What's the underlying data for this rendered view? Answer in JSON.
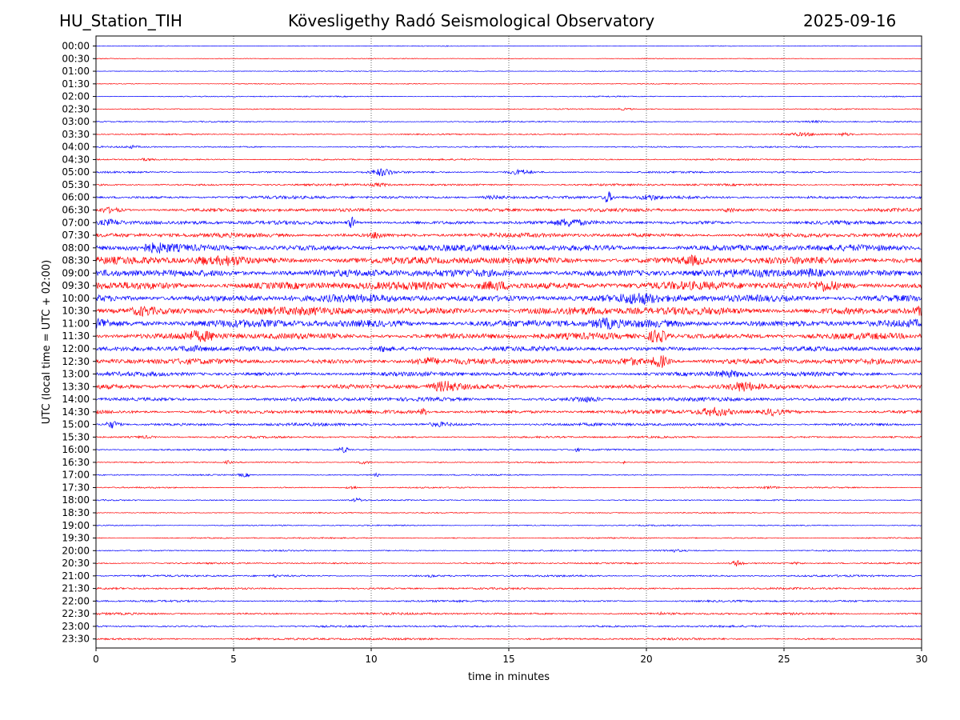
{
  "header": {
    "station": "HU_Station_TIH",
    "observatory": "Kövesligethy Radó Seismological Observatory",
    "date": "2025-09-16"
  },
  "chart_data": {
    "type": "line",
    "title": "Kövesligethy Radó Seismological Observatory",
    "xlabel": "time in minutes",
    "ylabel": "UTC (local time = UTC + 02:00)",
    "xlim": [
      0,
      30
    ],
    "x_ticks": [
      "0",
      "5",
      "10",
      "15",
      "20",
      "25",
      "30"
    ],
    "grid": "vertical dotted",
    "colors": {
      "even_rows": "#0000ff",
      "odd_rows": "#ff0000"
    },
    "rows": [
      {
        "label": "00:00",
        "noise": 0.18,
        "events": []
      },
      {
        "label": "00:30",
        "noise": 0.18,
        "events": []
      },
      {
        "label": "01:00",
        "noise": 0.2,
        "events": []
      },
      {
        "label": "01:30",
        "noise": 0.2,
        "events": []
      },
      {
        "label": "02:00",
        "noise": 0.25,
        "events": []
      },
      {
        "label": "02:30",
        "noise": 0.25,
        "events": [
          [
            19.2,
            0.5,
            0.3
          ]
        ]
      },
      {
        "label": "03:00",
        "noise": 0.3,
        "events": [
          [
            26.2,
            0.4,
            0.4
          ]
        ]
      },
      {
        "label": "03:30",
        "noise": 0.3,
        "events": [
          [
            25.6,
            0.8,
            0.6
          ],
          [
            27.2,
            0.7,
            0.2
          ]
        ]
      },
      {
        "label": "04:00",
        "noise": 0.35,
        "events": [
          [
            1.3,
            0.6,
            0.2
          ]
        ]
      },
      {
        "label": "04:30",
        "noise": 0.35,
        "events": [
          [
            1.8,
            0.5,
            0.3
          ]
        ]
      },
      {
        "label": "05:00",
        "noise": 0.45,
        "events": [
          [
            10.4,
            1.8,
            0.35
          ],
          [
            15.4,
            1.2,
            0.4
          ]
        ]
      },
      {
        "label": "05:30",
        "noise": 0.5,
        "events": [
          [
            10.3,
            0.7,
            0.3
          ]
        ]
      },
      {
        "label": "06:00",
        "noise": 0.7,
        "events": [
          [
            18.6,
            3.0,
            0.15
          ],
          [
            20.1,
            1.2,
            0.3
          ],
          [
            14.5,
            0.9,
            0.5
          ]
        ]
      },
      {
        "label": "06:30",
        "noise": 0.8,
        "events": [
          [
            0.5,
            1.2,
            0.4
          ],
          [
            23.0,
            1.0,
            0.2
          ]
        ]
      },
      {
        "label": "07:00",
        "noise": 0.9,
        "events": [
          [
            9.3,
            2.8,
            0.15
          ],
          [
            0.5,
            1.5,
            0.5
          ],
          [
            17.2,
            1.5,
            0.4
          ]
        ]
      },
      {
        "label": "07:30",
        "noise": 1.0,
        "events": [
          [
            10.2,
            1.6,
            0.2
          ]
        ]
      },
      {
        "label": "08:00",
        "noise": 1.5,
        "events": [
          [
            2.2,
            1.4,
            0.6
          ]
        ]
      },
      {
        "label": "08:30",
        "noise": 1.7,
        "events": [
          [
            4.8,
            1.8,
            0.6
          ],
          [
            21.7,
            1.6,
            0.4
          ],
          [
            3.8,
            1.4,
            0.3
          ]
        ]
      },
      {
        "label": "09:00",
        "noise": 1.8,
        "events": [
          [
            26.0,
            1.6,
            0.4
          ]
        ]
      },
      {
        "label": "09:30",
        "noise": 1.9,
        "events": [
          [
            14.5,
            1.8,
            0.6
          ],
          [
            26.5,
            1.8,
            0.4
          ]
        ]
      },
      {
        "label": "10:00",
        "noise": 1.8,
        "events": [
          [
            19.7,
            1.5,
            0.6
          ]
        ]
      },
      {
        "label": "10:30",
        "noise": 1.9,
        "events": [
          [
            1.7,
            1.6,
            0.4
          ],
          [
            30.0,
            1.6,
            0.3
          ]
        ]
      },
      {
        "label": "11:00",
        "noise": 1.8,
        "events": [
          [
            0.2,
            1.8,
            0.3
          ],
          [
            18.5,
            1.7,
            0.4
          ]
        ]
      },
      {
        "label": "11:30",
        "noise": 1.5,
        "events": [
          [
            20.4,
            3.2,
            0.35
          ],
          [
            3.8,
            1.6,
            0.6
          ]
        ]
      },
      {
        "label": "12:00",
        "noise": 1.1,
        "events": [
          [
            10.5,
            1.3,
            0.2
          ],
          [
            3.5,
            1.0,
            0.5
          ]
        ]
      },
      {
        "label": "12:30",
        "noise": 1.3,
        "events": [
          [
            20.5,
            3.3,
            0.3
          ],
          [
            12.0,
            1.6,
            0.4
          ],
          [
            19.5,
            1.4,
            0.5
          ]
        ]
      },
      {
        "label": "13:00",
        "noise": 1.0,
        "events": [
          [
            23.0,
            1.3,
            0.6
          ]
        ]
      },
      {
        "label": "13:30",
        "noise": 1.1,
        "events": [
          [
            12.7,
            2.4,
            0.5
          ],
          [
            23.5,
            2.0,
            0.4
          ]
        ]
      },
      {
        "label": "14:00",
        "noise": 0.9,
        "events": [
          [
            17.8,
            1.1,
            0.5
          ]
        ]
      },
      {
        "label": "14:30",
        "noise": 0.9,
        "events": [
          [
            22.5,
            2.0,
            0.6
          ],
          [
            11.9,
            1.6,
            0.15
          ],
          [
            24.6,
            1.4,
            0.3
          ]
        ]
      },
      {
        "label": "15:00",
        "noise": 0.7,
        "events": [
          [
            0.6,
            2.0,
            0.25
          ],
          [
            12.5,
            0.9,
            0.4
          ]
        ]
      },
      {
        "label": "15:30",
        "noise": 0.45,
        "events": [
          [
            1.8,
            0.6,
            0.3
          ]
        ]
      },
      {
        "label": "16:00",
        "noise": 0.4,
        "events": [
          [
            9.0,
            1.3,
            0.2
          ],
          [
            17.5,
            0.8,
            0.1
          ]
        ]
      },
      {
        "label": "16:30",
        "noise": 0.3,
        "events": [
          [
            4.8,
            1.0,
            0.1
          ],
          [
            9.7,
            0.8,
            0.3
          ],
          [
            19.2,
            0.6,
            0.1
          ]
        ]
      },
      {
        "label": "17:00",
        "noise": 0.3,
        "events": [
          [
            5.4,
            0.9,
            0.2
          ],
          [
            10.2,
            0.8,
            0.1
          ]
        ]
      },
      {
        "label": "17:30",
        "noise": 0.3,
        "events": [
          [
            9.3,
            0.9,
            0.2
          ],
          [
            24.5,
            0.6,
            0.3
          ]
        ]
      },
      {
        "label": "18:00",
        "noise": 0.3,
        "events": [
          [
            9.5,
            0.9,
            0.2
          ]
        ]
      },
      {
        "label": "18:30",
        "noise": 0.25,
        "events": []
      },
      {
        "label": "19:00",
        "noise": 0.3,
        "events": []
      },
      {
        "label": "19:30",
        "noise": 0.3,
        "events": []
      },
      {
        "label": "20:00",
        "noise": 0.35,
        "events": [
          [
            21.0,
            0.5,
            0.3
          ]
        ]
      },
      {
        "label": "20:30",
        "noise": 0.35,
        "events": [
          [
            23.3,
            1.6,
            0.2
          ],
          [
            25.5,
            0.5,
            0.2
          ]
        ]
      },
      {
        "label": "21:00",
        "noise": 0.45,
        "events": [
          [
            6.5,
            0.6,
            0.1
          ],
          [
            12.2,
            0.6,
            0.1
          ]
        ]
      },
      {
        "label": "21:30",
        "noise": 0.45,
        "events": []
      },
      {
        "label": "22:00",
        "noise": 0.45,
        "events": []
      },
      {
        "label": "22:30",
        "noise": 0.5,
        "events": [
          [
            20.5,
            0.6,
            0.1
          ]
        ]
      },
      {
        "label": "23:00",
        "noise": 0.45,
        "events": []
      },
      {
        "label": "23:30",
        "noise": 0.5,
        "events": []
      }
    ]
  }
}
